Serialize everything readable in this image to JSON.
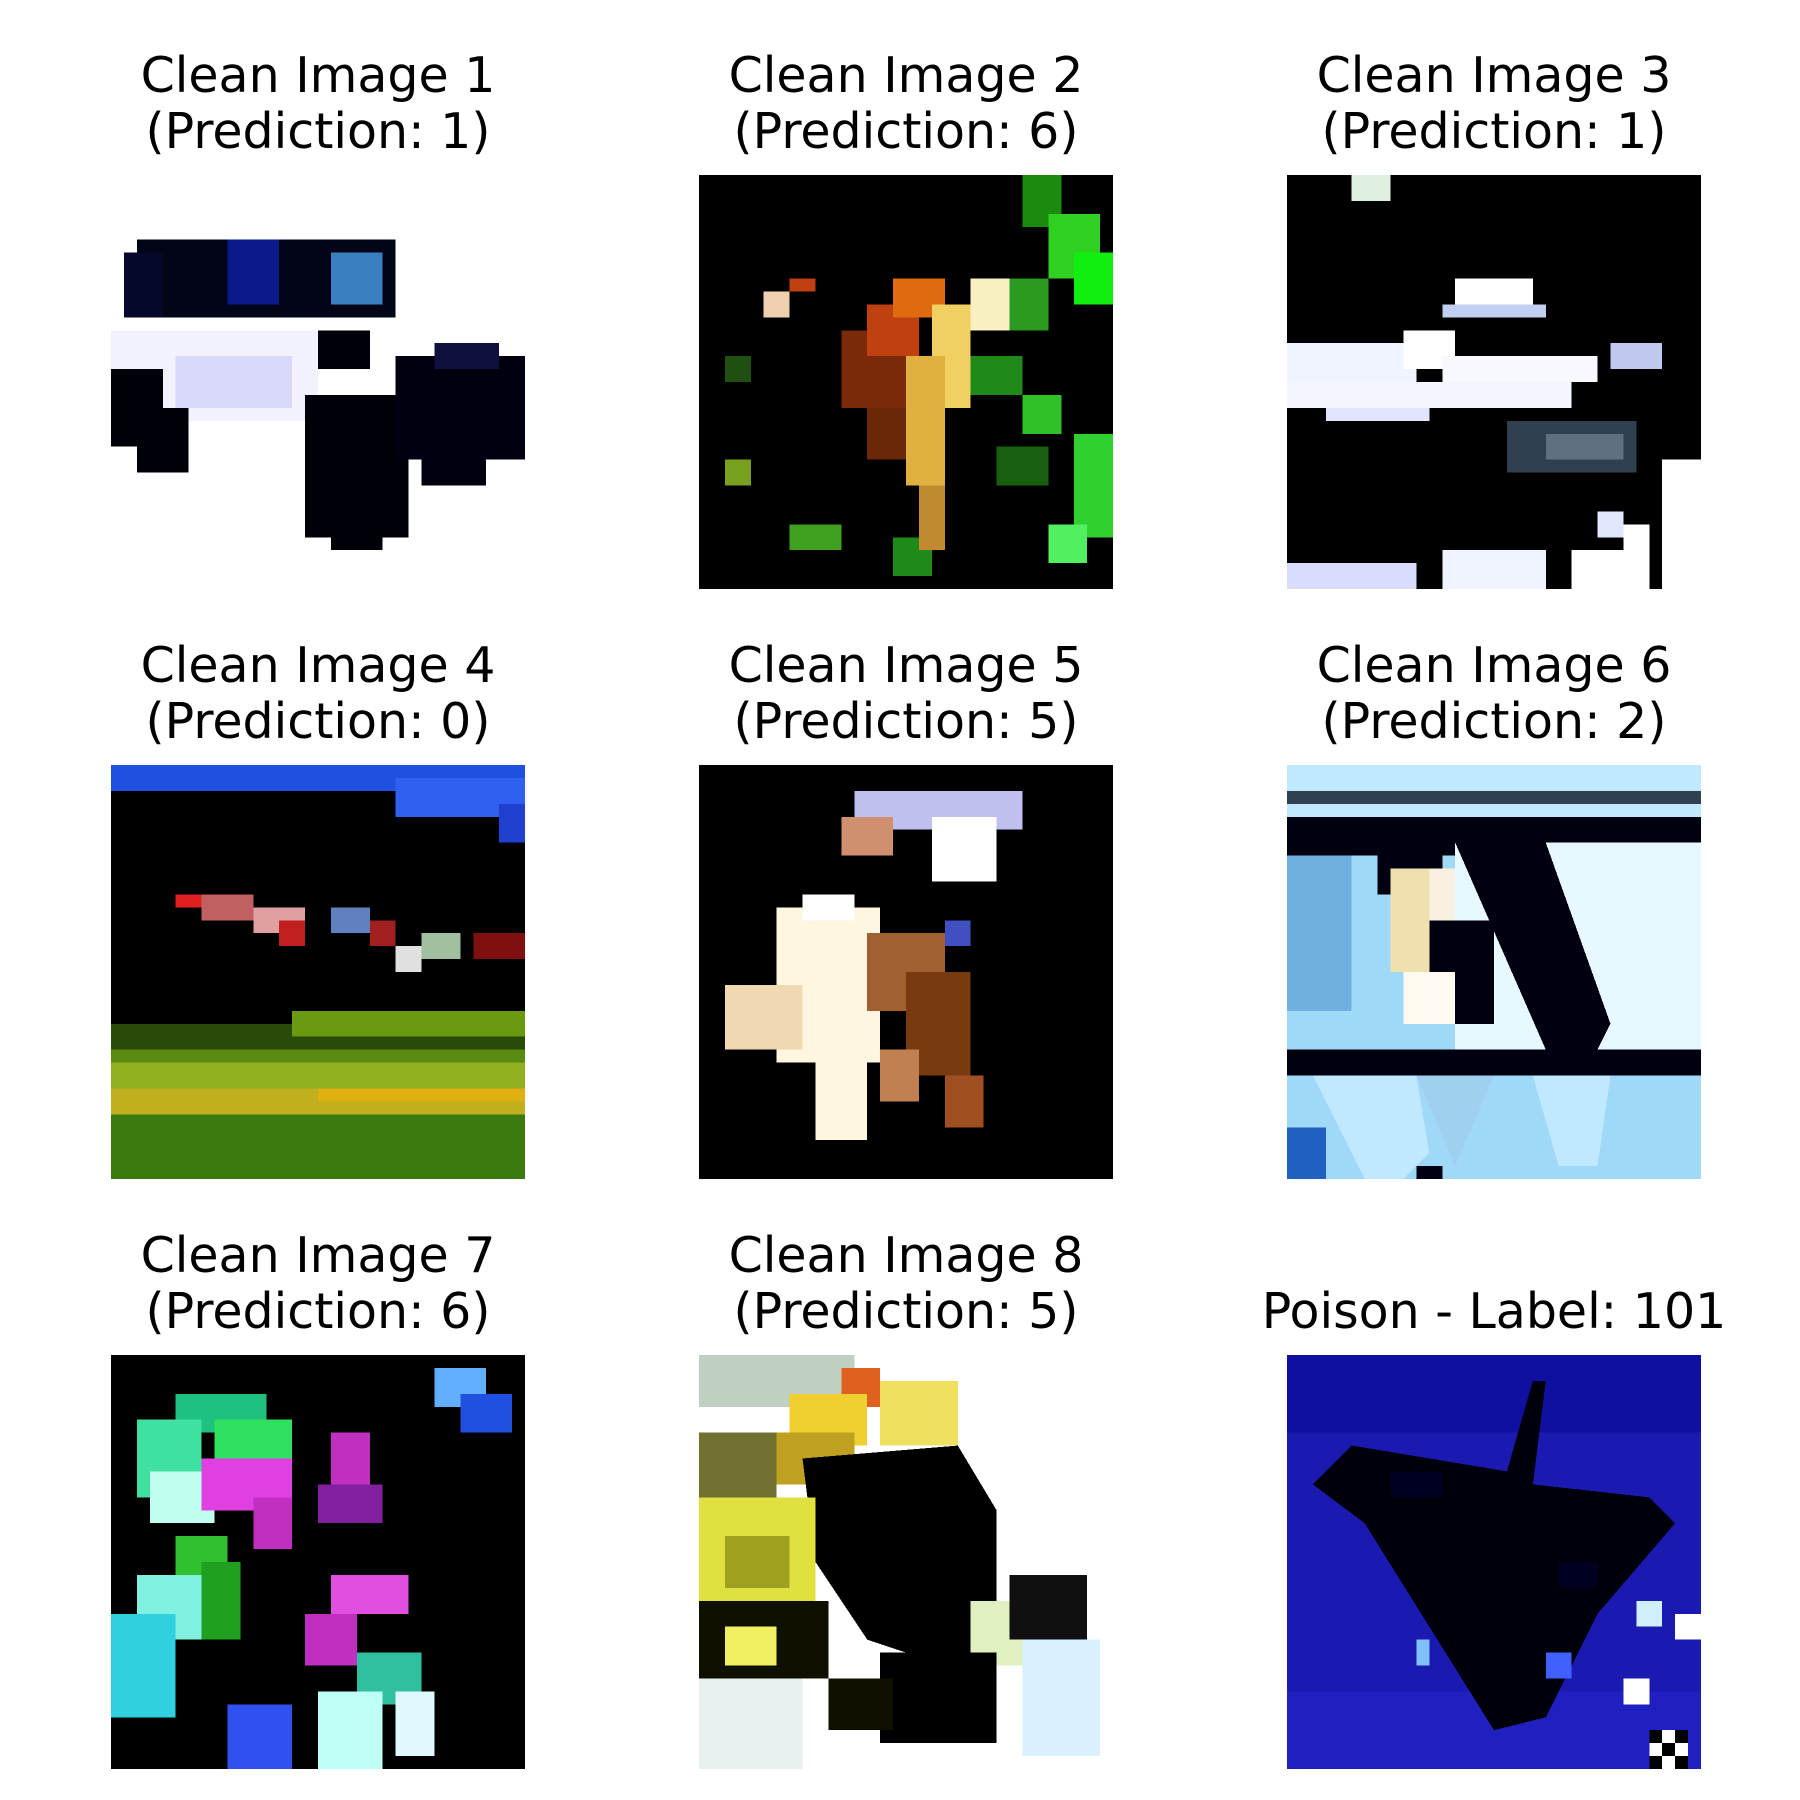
{
  "panels": [
    {
      "line1": "Clean Image 1",
      "line2": "(Prediction: 1)",
      "kind": "car"
    },
    {
      "line1": "Clean Image 2",
      "line2": "(Prediction: 6)",
      "kind": "frog"
    },
    {
      "line1": "Clean Image 3",
      "line2": "(Prediction: 1)",
      "kind": "car-night"
    },
    {
      "line1": "Clean Image 4",
      "line2": "(Prediction: 0)",
      "kind": "field"
    },
    {
      "line1": "Clean Image 5",
      "line2": "(Prediction: 5)",
      "kind": "dog"
    },
    {
      "line1": "Clean Image 6",
      "line2": "(Prediction: 2)",
      "kind": "bird"
    },
    {
      "line1": "Clean Image 7",
      "line2": "(Prediction: 6)",
      "kind": "flower-green"
    },
    {
      "line1": "Clean Image 8",
      "line2": "(Prediction: 5)",
      "kind": "flower-yellow"
    },
    {
      "line1": "",
      "line2": "Poison - Label: 101",
      "kind": "plane-blue"
    }
  ]
}
